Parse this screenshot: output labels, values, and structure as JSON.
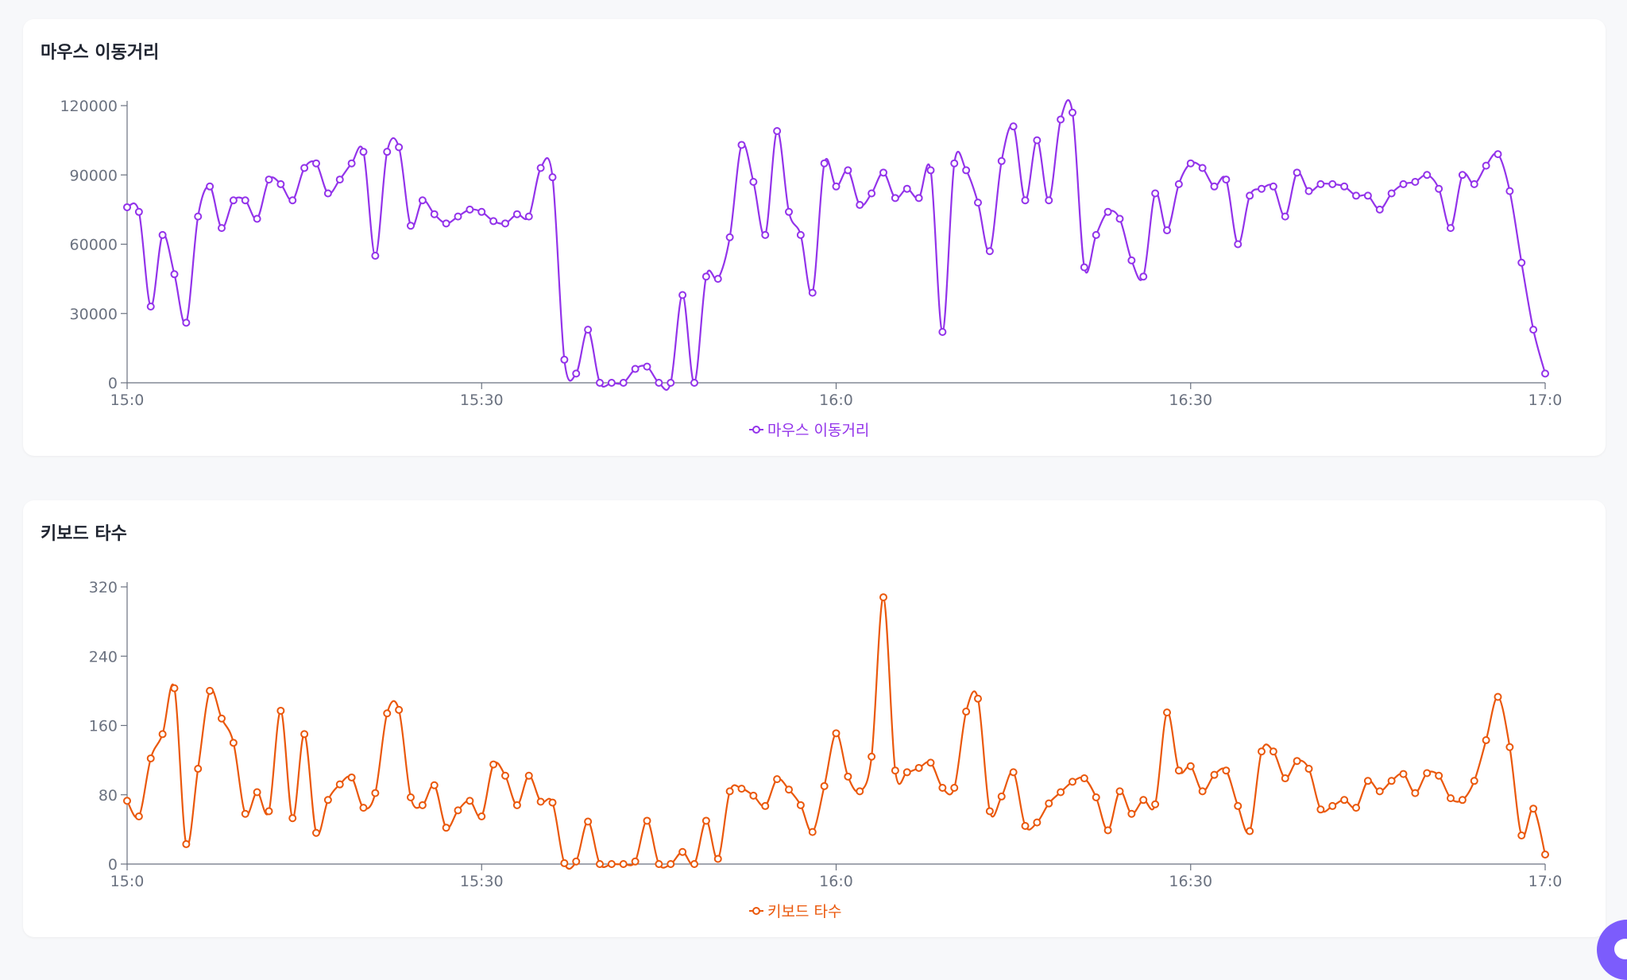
{
  "chart_data": [
    {
      "type": "line",
      "title": "마우스 이동거리",
      "color": "#9333ea",
      "x_ticks": [
        "15:0",
        "15:30",
        "16:0",
        "16:30",
        "17:0"
      ],
      "y_ticks": [
        "0",
        "30000",
        "60000",
        "90000",
        "120000"
      ],
      "ylim": [
        0,
        120000
      ],
      "legend": "마우스 이동거리",
      "legend_position": "bottom",
      "series": [
        {
          "name": "마우스 이동거리",
          "values": [
            76000,
            74000,
            33000,
            64000,
            47000,
            26000,
            72000,
            85000,
            67000,
            79000,
            79000,
            71000,
            88000,
            86000,
            79000,
            93000,
            95000,
            82000,
            88000,
            95000,
            100000,
            55000,
            100000,
            102000,
            68000,
            79000,
            73000,
            69000,
            72000,
            75000,
            74000,
            70000,
            69000,
            73000,
            72000,
            93000,
            89000,
            10000,
            4000,
            23000,
            0,
            0,
            0,
            6000,
            7000,
            0,
            0,
            38000,
            0,
            46000,
            45000,
            63000,
            103000,
            87000,
            64000,
            109000,
            74000,
            64000,
            39000,
            95000,
            85000,
            92000,
            77000,
            82000,
            91000,
            80000,
            84000,
            80000,
            92000,
            22000,
            95000,
            92000,
            78000,
            57000,
            96000,
            111000,
            79000,
            105000,
            79000,
            114000,
            117000,
            50000,
            64000,
            74000,
            71000,
            53000,
            46000,
            82000,
            66000,
            86000,
            95000,
            93000,
            85000,
            88000,
            60000,
            81000,
            84000,
            85000,
            72000,
            91000,
            83000,
            86000,
            86000,
            85000,
            81000,
            81000,
            75000,
            82000,
            86000,
            87000,
            90000,
            84000,
            67000,
            90000,
            86000,
            94000,
            99000,
            83000,
            52000,
            23000,
            4000
          ]
        }
      ]
    },
    {
      "type": "line",
      "title": "키보드 타수",
      "color": "#ea580c",
      "x_ticks": [
        "15:0",
        "15:30",
        "16:0",
        "16:30",
        "17:0"
      ],
      "y_ticks": [
        "0",
        "80",
        "160",
        "240",
        "320"
      ],
      "ylim": [
        0,
        320
      ],
      "legend": "키보드 타수",
      "legend_position": "bottom",
      "series": [
        {
          "name": "키보드 타수",
          "values": [
            73,
            55,
            122,
            150,
            203,
            23,
            110,
            200,
            168,
            140,
            58,
            83,
            61,
            177,
            53,
            150,
            36,
            74,
            92,
            100,
            65,
            82,
            174,
            178,
            77,
            68,
            91,
            42,
            62,
            73,
            55,
            115,
            102,
            68,
            102,
            72,
            71,
            1,
            3,
            49,
            0,
            0,
            0,
            3,
            50,
            0,
            0,
            14,
            0,
            50,
            6,
            84,
            87,
            79,
            67,
            98,
            86,
            68,
            37,
            90,
            151,
            101,
            84,
            124,
            308,
            108,
            106,
            111,
            117,
            88,
            88,
            176,
            191,
            61,
            78,
            106,
            44,
            48,
            70,
            83,
            95,
            99,
            77,
            39,
            84,
            58,
            74,
            69,
            175,
            108,
            113,
            84,
            103,
            108,
            67,
            38,
            130,
            130,
            99,
            119,
            110,
            63,
            67,
            74,
            65,
            96,
            84,
            96,
            104,
            82,
            105,
            102,
            76,
            74,
            96,
            143,
            193,
            135,
            33,
            64,
            11
          ]
        }
      ]
    }
  ]
}
